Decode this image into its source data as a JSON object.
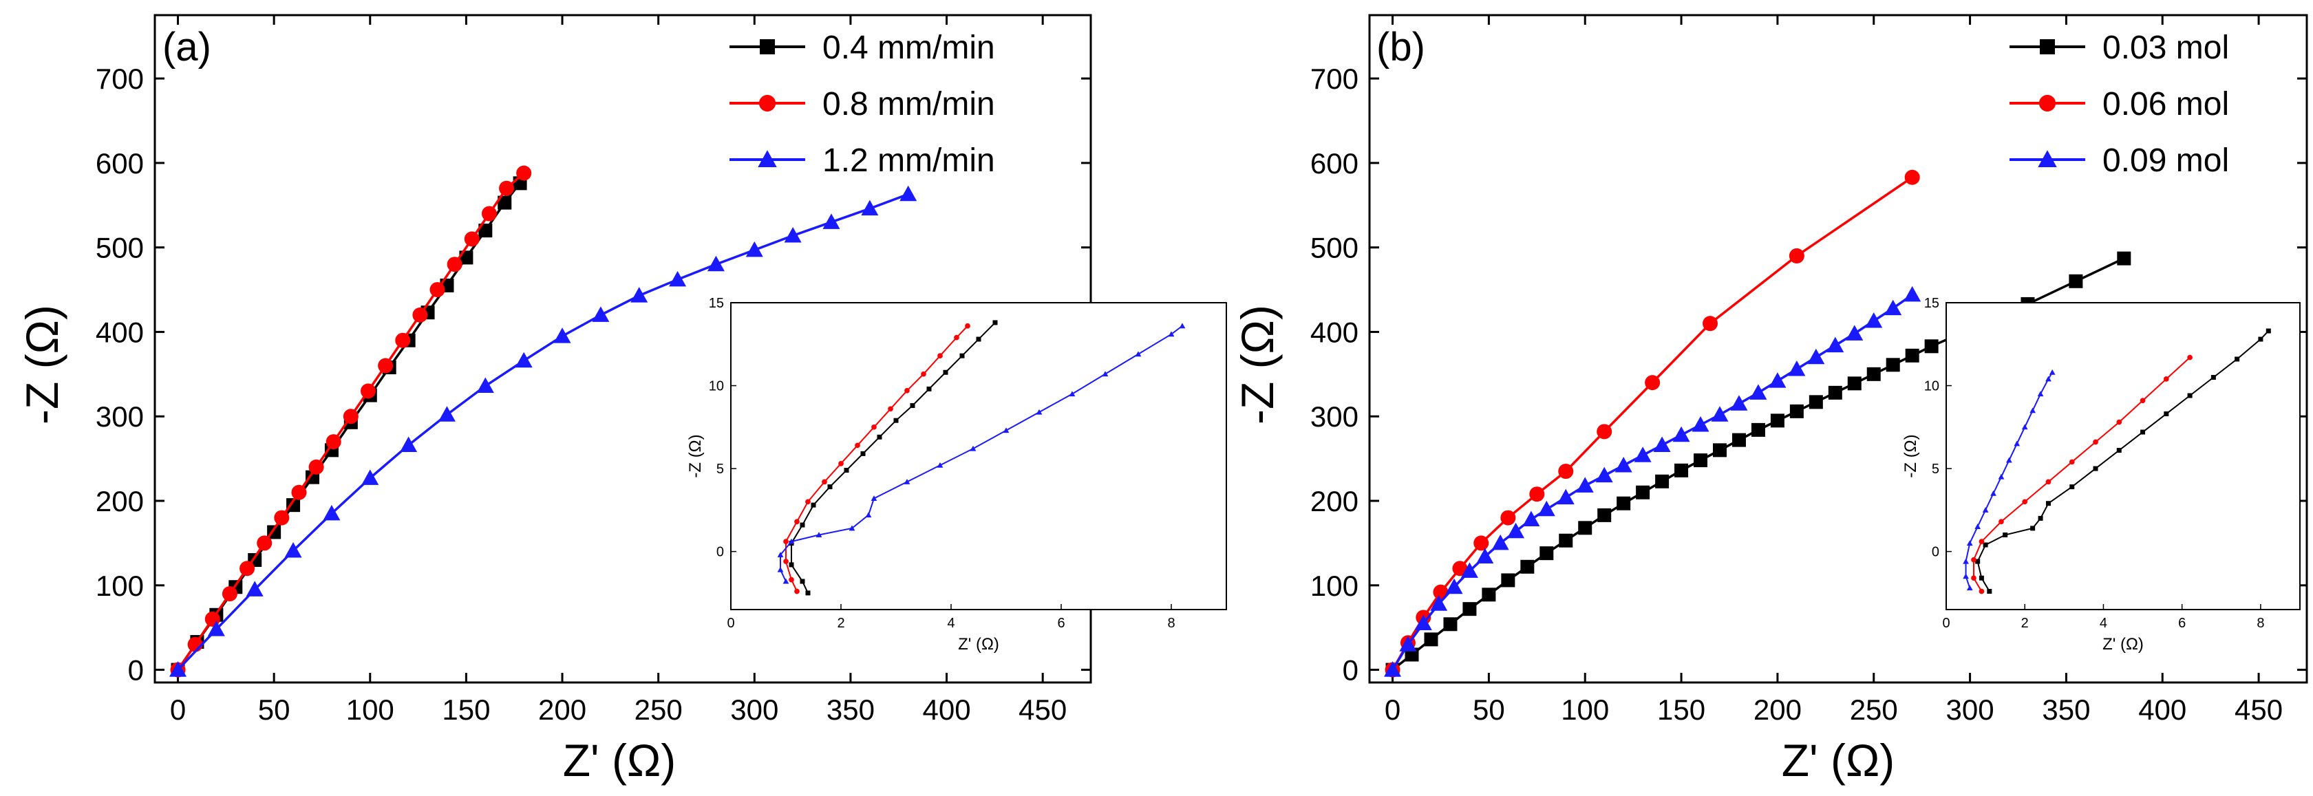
{
  "chart_data": [
    {
      "type": "line",
      "panel_label": "(a)",
      "xlabel": "Z' (Ω)",
      "ylabel": "-Z (Ω)",
      "xlim": [
        -12,
        475
      ],
      "ylim": [
        -15,
        775
      ],
      "xticks": [
        0,
        50,
        100,
        150,
        200,
        250,
        300,
        350,
        400,
        450
      ],
      "yticks": [
        0,
        100,
        200,
        300,
        400,
        500,
        600,
        700
      ],
      "legend_position": "top-right",
      "series": [
        {
          "name": "0.4 mm/min",
          "color": "#000000",
          "marker": "square",
          "x": [
            0,
            10,
            20,
            30,
            40,
            50,
            60,
            70,
            80,
            90,
            100,
            110,
            120,
            130,
            140,
            150,
            160,
            170,
            178
          ],
          "y": [
            0,
            33,
            65,
            98,
            130,
            163,
            195,
            228,
            260,
            293,
            325,
            358,
            390,
            423,
            455,
            488,
            520,
            553,
            576
          ]
        },
        {
          "name": "0.8 mm/min",
          "color": "#ff0000",
          "marker": "circle",
          "x": [
            0,
            9,
            18,
            27,
            36,
            45,
            54,
            63,
            72,
            81,
            90,
            99,
            108,
            117,
            126,
            135,
            144,
            153,
            162,
            171,
            180
          ],
          "y": [
            0,
            30,
            60,
            90,
            120,
            150,
            180,
            210,
            240,
            270,
            300,
            330,
            360,
            390,
            420,
            450,
            480,
            510,
            540,
            570,
            588
          ]
        },
        {
          "name": "1.2 mm/min",
          "color": "#1a1aff",
          "marker": "triangle",
          "x": [
            0,
            20,
            40,
            60,
            80,
            100,
            120,
            140,
            160,
            180,
            200,
            220,
            240,
            260,
            280,
            300,
            320,
            340,
            360,
            380
          ],
          "y": [
            0,
            48,
            95,
            141,
            185,
            227,
            266,
            302,
            336,
            366,
            395,
            420,
            443,
            462,
            480,
            497,
            514,
            530,
            546,
            563
          ]
        }
      ],
      "inset": {
        "xlabel": "Z' (Ω)",
        "ylabel": "-Z (Ω)",
        "xlim": [
          0,
          9
        ],
        "ylim": [
          -3.5,
          15
        ],
        "xticks": [
          0,
          2,
          4,
          6,
          8
        ],
        "yticks": [
          0,
          5,
          10,
          15
        ],
        "series": [
          {
            "name": "0.4 mm/min",
            "color": "#000000",
            "marker": "square",
            "x": [
              1.4,
              1.3,
              1.1,
              1.1,
              1.3,
              1.5,
              1.8,
              2.1,
              2.4,
              2.7,
              3.0,
              3.3,
              3.6,
              3.9,
              4.2,
              4.5,
              4.8
            ],
            "y": [
              -2.5,
              -1.8,
              -0.8,
              0.5,
              1.6,
              2.8,
              3.9,
              4.9,
              5.9,
              6.9,
              7.9,
              8.8,
              9.8,
              10.8,
              11.8,
              12.8,
              13.8
            ]
          },
          {
            "name": "0.8 mm/min",
            "color": "#ff0000",
            "marker": "circle",
            "x": [
              1.2,
              1.1,
              1.0,
              1.0,
              1.2,
              1.4,
              1.7,
              2.0,
              2.3,
              2.6,
              2.9,
              3.2,
              3.5,
              3.8,
              4.1,
              4.3
            ],
            "y": [
              -2.4,
              -1.7,
              -0.6,
              0.6,
              1.8,
              3.0,
              4.2,
              5.3,
              6.4,
              7.5,
              8.6,
              9.7,
              10.7,
              11.8,
              12.9,
              13.6
            ]
          },
          {
            "name": "1.2 mm/min",
            "color": "#1a1aff",
            "marker": "triangle",
            "x": [
              1.0,
              0.9,
              0.9,
              1.1,
              1.6,
              2.2,
              2.5,
              2.6,
              3.2,
              3.8,
              4.4,
              5.0,
              5.6,
              6.2,
              6.8,
              7.4,
              8.0,
              8.2
            ],
            "y": [
              -1.8,
              -1.1,
              -0.2,
              0.6,
              1.0,
              1.4,
              2.2,
              3.2,
              4.2,
              5.2,
              6.2,
              7.3,
              8.4,
              9.5,
              10.7,
              11.9,
              13.1,
              13.6
            ]
          }
        ]
      }
    },
    {
      "type": "line",
      "panel_label": "(b)",
      "xlabel": "Z' (Ω)",
      "ylabel": "-Z (Ω)",
      "xlim": [
        -12,
        475
      ],
      "ylim": [
        -15,
        775
      ],
      "xticks": [
        0,
        50,
        100,
        150,
        200,
        250,
        300,
        350,
        400,
        450
      ],
      "yticks": [
        0,
        100,
        200,
        300,
        400,
        500,
        600,
        700
      ],
      "legend_position": "top-right",
      "series": [
        {
          "name": "0.03 mol",
          "color": "#000000",
          "marker": "square",
          "x": [
            0,
            10,
            20,
            30,
            40,
            50,
            60,
            70,
            80,
            90,
            100,
            110,
            120,
            130,
            140,
            150,
            160,
            170,
            180,
            190,
            200,
            210,
            220,
            230,
            240,
            250,
            260,
            270,
            280,
            305,
            330,
            355,
            380
          ],
          "y": [
            0,
            18,
            36,
            54,
            72,
            89,
            106,
            122,
            138,
            153,
            168,
            183,
            197,
            210,
            223,
            236,
            248,
            260,
            272,
            284,
            295,
            306,
            317,
            328,
            339,
            350,
            361,
            372,
            383,
            408,
            433,
            460,
            487
          ]
        },
        {
          "name": "0.06 mol",
          "color": "#ff0000",
          "marker": "circle",
          "x": [
            0,
            8,
            16,
            25,
            35,
            46,
            60,
            75,
            90,
            110,
            135,
            165,
            210,
            270
          ],
          "y": [
            0,
            32,
            62,
            92,
            120,
            150,
            180,
            208,
            235,
            282,
            340,
            410,
            490,
            583
          ]
        },
        {
          "name": "0.09 mol",
          "color": "#1a1aff",
          "marker": "triangle",
          "x": [
            0,
            8,
            16,
            24,
            32,
            40,
            48,
            56,
            64,
            72,
            80,
            90,
            100,
            110,
            120,
            130,
            140,
            150,
            160,
            170,
            180,
            190,
            200,
            210,
            220,
            230,
            240,
            250,
            260,
            270
          ],
          "y": [
            0,
            30,
            55,
            78,
            98,
            117,
            134,
            150,
            164,
            178,
            190,
            204,
            218,
            230,
            242,
            254,
            266,
            278,
            290,
            302,
            315,
            328,
            342,
            356,
            370,
            384,
            398,
            413,
            428,
            444
          ]
        }
      ],
      "inset": {
        "xlabel": "Z' (Ω)",
        "ylabel": "-Z (Ω)",
        "xlim": [
          0,
          9
        ],
        "ylim": [
          -3.5,
          15
        ],
        "xticks": [
          0,
          2,
          4,
          6,
          8
        ],
        "yticks": [
          0,
          5,
          10,
          15
        ],
        "series": [
          {
            "name": "0.03 mol",
            "color": "#000000",
            "marker": "square",
            "x": [
              1.1,
              0.9,
              0.8,
              1.0,
              1.5,
              2.2,
              2.4,
              2.6,
              3.2,
              3.8,
              4.4,
              5.0,
              5.6,
              6.2,
              6.8,
              7.4,
              8.0,
              8.2
            ],
            "y": [
              -2.4,
              -1.6,
              -0.6,
              0.4,
              1.0,
              1.4,
              2.0,
              2.9,
              3.9,
              5.0,
              6.1,
              7.2,
              8.3,
              9.4,
              10.5,
              11.6,
              12.8,
              13.3
            ]
          },
          {
            "name": "0.06 mol",
            "color": "#ff0000",
            "marker": "circle",
            "x": [
              0.9,
              0.7,
              0.7,
              0.9,
              1.4,
              2.0,
              2.6,
              3.2,
              3.8,
              4.4,
              5.0,
              5.6,
              6.2
            ],
            "y": [
              -2.4,
              -1.6,
              -0.5,
              0.6,
              1.8,
              3.0,
              4.2,
              5.4,
              6.6,
              7.8,
              9.1,
              10.4,
              11.7
            ]
          },
          {
            "name": "0.09 mol",
            "color": "#1a1aff",
            "marker": "triangle",
            "x": [
              0.6,
              0.5,
              0.5,
              0.6,
              0.8,
              1.0,
              1.2,
              1.4,
              1.6,
              1.8,
              2.0,
              2.2,
              2.4,
              2.6,
              2.7
            ],
            "y": [
              -2.2,
              -1.5,
              -0.6,
              0.5,
              1.5,
              2.5,
              3.5,
              4.5,
              5.5,
              6.5,
              7.5,
              8.5,
              9.5,
              10.4,
              10.8
            ]
          }
        ]
      }
    }
  ]
}
